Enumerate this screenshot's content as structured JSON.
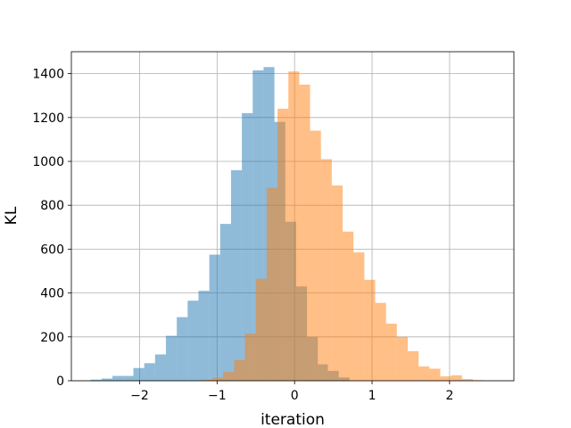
{
  "chart_data": {
    "type": "histogram",
    "title": "",
    "xlabel": "iteration",
    "ylabel": "KL",
    "xlim": [
      -2.88,
      2.83
    ],
    "ylim": [
      0,
      1500
    ],
    "xticks": [
      -2,
      -1,
      0,
      1,
      2
    ],
    "xtick_labels": [
      "−2",
      "−1",
      "0",
      "1",
      "2"
    ],
    "yticks": [
      0,
      200,
      400,
      600,
      800,
      1000,
      1200,
      1400
    ],
    "grid": true,
    "series": [
      {
        "color": "#1f77b4",
        "opacity": 0.5,
        "bins": [
          [
            -2.63,
            -2.49,
            5
          ],
          [
            -2.49,
            -2.35,
            10
          ],
          [
            -2.35,
            -2.21,
            22
          ],
          [
            -2.21,
            -2.08,
            22
          ],
          [
            -2.08,
            -1.94,
            58
          ],
          [
            -1.94,
            -1.8,
            80
          ],
          [
            -1.8,
            -1.66,
            120
          ],
          [
            -1.66,
            -1.52,
            205
          ],
          [
            -1.52,
            -1.38,
            290
          ],
          [
            -1.38,
            -1.24,
            365
          ],
          [
            -1.24,
            -1.1,
            410
          ],
          [
            -1.1,
            -0.96,
            575
          ],
          [
            -0.96,
            -0.82,
            715
          ],
          [
            -0.82,
            -0.68,
            960
          ],
          [
            -0.68,
            -0.54,
            1220
          ],
          [
            -0.54,
            -0.4,
            1415
          ],
          [
            -0.4,
            -0.26,
            1430
          ],
          [
            -0.26,
            -0.12,
            1180
          ],
          [
            -0.12,
            0.02,
            725
          ],
          [
            0.02,
            0.16,
            430
          ],
          [
            0.16,
            0.3,
            200
          ],
          [
            0.3,
            0.43,
            75
          ],
          [
            0.43,
            0.57,
            45
          ],
          [
            0.57,
            0.71,
            15
          ]
        ]
      },
      {
        "color": "#ff7f0e",
        "opacity": 0.5,
        "bins": [
          [
            -1.2,
            -1.06,
            5
          ],
          [
            -1.06,
            -0.92,
            15
          ],
          [
            -0.92,
            -0.78,
            40
          ],
          [
            -0.78,
            -0.64,
            95
          ],
          [
            -0.64,
            -0.5,
            215
          ],
          [
            -0.5,
            -0.36,
            465
          ],
          [
            -0.36,
            -0.22,
            880
          ],
          [
            -0.22,
            -0.08,
            1240
          ],
          [
            -0.08,
            0.06,
            1410
          ],
          [
            0.06,
            0.2,
            1350
          ],
          [
            0.2,
            0.34,
            1140
          ],
          [
            0.34,
            0.48,
            1010
          ],
          [
            0.48,
            0.62,
            890
          ],
          [
            0.62,
            0.76,
            680
          ],
          [
            0.76,
            0.9,
            585
          ],
          [
            0.9,
            1.04,
            460
          ],
          [
            1.04,
            1.18,
            355
          ],
          [
            1.18,
            1.32,
            260
          ],
          [
            1.32,
            1.46,
            200
          ],
          [
            1.46,
            1.6,
            135
          ],
          [
            1.6,
            1.74,
            65
          ],
          [
            1.74,
            1.88,
            55
          ],
          [
            1.88,
            2.02,
            20
          ],
          [
            2.02,
            2.16,
            25
          ],
          [
            2.16,
            2.3,
            8
          ],
          [
            2.3,
            2.44,
            3
          ]
        ]
      }
    ]
  }
}
